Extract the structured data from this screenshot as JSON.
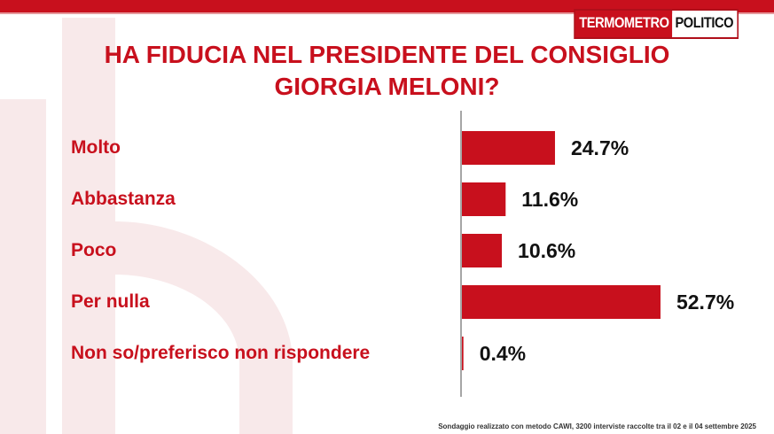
{
  "logo": {
    "left": "TERMOMETRO",
    "right": "POLITICO"
  },
  "title": {
    "line1": "HA FIDUCIA NEL PRESIDENTE DEL CONSIGLIO",
    "line2": "GIORGIA MELONI?"
  },
  "footer": "Sondaggio realizzato con metodo CAWI, 3200 interviste raccolte tra il 02 e il 04 settembre 2025",
  "colors": {
    "accent": "#c8101d",
    "bar": "#c8101d",
    "value_text": "#111111"
  },
  "chart_data": {
    "type": "bar",
    "orientation": "horizontal",
    "categories": [
      "Molto",
      "Abbastanza",
      "Poco",
      "Per nulla",
      "Non so/preferisco non rispondere"
    ],
    "values": [
      24.7,
      11.6,
      10.6,
      52.7,
      0.4
    ],
    "value_labels": [
      "24.7%",
      "11.6%",
      "10.6%",
      "52.7%",
      "0.4%"
    ],
    "title": "HA FIDUCIA NEL PRESIDENTE DEL CONSIGLIO GIORGIA MELONI?",
    "xlabel": "",
    "ylabel": "",
    "grid": false,
    "legend": false
  }
}
